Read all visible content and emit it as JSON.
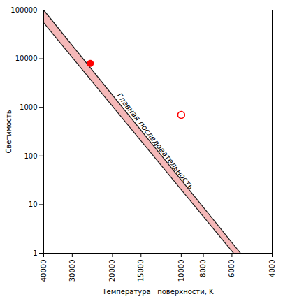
{
  "chart_data": {
    "type": "scatter",
    "title": "",
    "xlabel": "Температура   поверхности, K",
    "ylabel": "Светимость",
    "log": true,
    "xlim": [
      40000,
      4000
    ],
    "ylim": [
      1,
      100000
    ],
    "xticks": [
      40000,
      30000,
      20000,
      15000,
      10000,
      8000,
      6000,
      4000
    ],
    "yticks": [
      1,
      10,
      100,
      1000,
      10000,
      100000
    ],
    "series": [
      {
        "type": "band",
        "color": "#f5b8b8",
        "x": [
          40000,
          5500,
          5900,
          40000
        ],
        "y": [
          100000,
          1,
          1,
          55000
        ]
      },
      {
        "type": "line",
        "color": "#1a1a1a",
        "x": [
          40000,
          5500
        ],
        "y": [
          100000,
          1
        ]
      },
      {
        "type": "line",
        "color": "#1a1a1a",
        "x": [
          40000,
          5900
        ],
        "y": [
          55000,
          1
        ]
      },
      {
        "type": "scatter",
        "color": "#ff0000",
        "marker": "filled",
        "x": [
          25000
        ],
        "y": [
          8000
        ]
      },
      {
        "type": "scatter",
        "color": "#ff0000",
        "marker": "open",
        "x": [
          10000
        ],
        "y": [
          700
        ]
      }
    ],
    "annotations": [
      {
        "text": "Главная последовательность",
        "x": 13000,
        "y": 200
      }
    ]
  }
}
